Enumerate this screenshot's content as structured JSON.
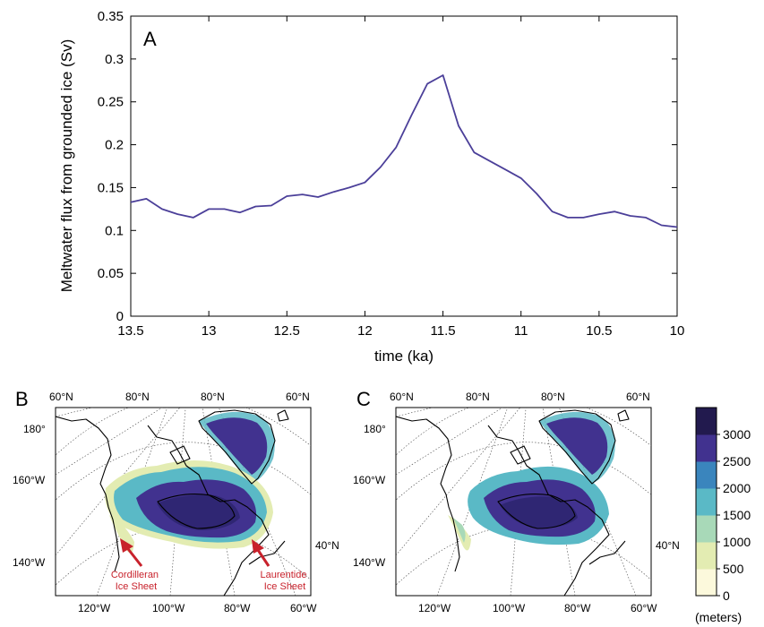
{
  "chart_data": [
    {
      "panel": "A",
      "type": "line",
      "xlabel": "time (ka)",
      "ylabel": "Meltwater flux from grounded ice (Sv)",
      "xlim": [
        13.5,
        10
      ],
      "ylim": [
        0,
        0.35
      ],
      "x_ticks": [
        "13.5",
        "13",
        "12.5",
        "12",
        "11.5",
        "11",
        "10.5",
        "10"
      ],
      "y_ticks": [
        "0",
        "0.05",
        "0.1",
        "0.15",
        "0.2",
        "0.25",
        "0.3",
        "0.35"
      ],
      "grid": false,
      "line_color": "#4b3f99",
      "series": [
        {
          "x": [
            13.5,
            13.4,
            13.3,
            13.2,
            13.1,
            13.0,
            12.9,
            12.8,
            12.7,
            12.6,
            12.5,
            12.4,
            12.3,
            12.2,
            12.1,
            12.0,
            11.9,
            11.8,
            11.7,
            11.6,
            11.5,
            11.4,
            11.3,
            11.2,
            11.1,
            11.0,
            10.9,
            10.8,
            10.7,
            10.6,
            10.5,
            10.4,
            10.3,
            10.2,
            10.1,
            10.0
          ],
          "y": [
            0.133,
            0.137,
            0.125,
            0.119,
            0.115,
            0.125,
            0.125,
            0.121,
            0.128,
            0.129,
            0.14,
            0.142,
            0.139,
            0.145,
            0.15,
            0.156,
            0.174,
            0.197,
            0.235,
            0.271,
            0.281,
            0.222,
            0.191,
            0.181,
            0.171,
            0.161,
            0.143,
            0.122,
            0.115,
            0.115,
            0.119,
            0.122,
            0.117,
            0.115,
            0.106,
            0.104
          ]
        }
      ]
    },
    {
      "panel": "B",
      "type": "heatmap",
      "labels": {
        "lat_top": [
          "60°N",
          "80°N",
          "80°N",
          "60°N"
        ],
        "lon_left": [
          "180°",
          "160°W",
          "140°W"
        ],
        "lon_bottom": [
          "120°W",
          "100°W",
          "80°W",
          "60°W"
        ],
        "lat_right": "40°N"
      },
      "annotations": [
        {
          "text": [
            "Cordilleran",
            "Ice Sheet"
          ]
        },
        {
          "text": [
            "Laurentide",
            "Ice Sheet"
          ]
        }
      ],
      "annotation_color": "#c8222c"
    },
    {
      "panel": "C",
      "type": "heatmap",
      "labels": {
        "lat_top": [
          "60°N",
          "80°N",
          "80°N",
          "60°N"
        ],
        "lon_left": [
          "180°",
          "160°W",
          "140°W"
        ],
        "lon_bottom": [
          "120°W",
          "100°W",
          "80°W",
          "60°W"
        ],
        "lat_right": "40°N"
      }
    }
  ],
  "colorbar": {
    "tick_labels": [
      "0",
      "500",
      "1000",
      "1500",
      "2000",
      "2500",
      "3000"
    ],
    "unit": "(meters)",
    "colors": [
      "#fcf9dc",
      "#e3ecb2",
      "#a8d9b8",
      "#5ab9c6",
      "#3a85bd",
      "#41328f",
      "#221a4e"
    ]
  }
}
